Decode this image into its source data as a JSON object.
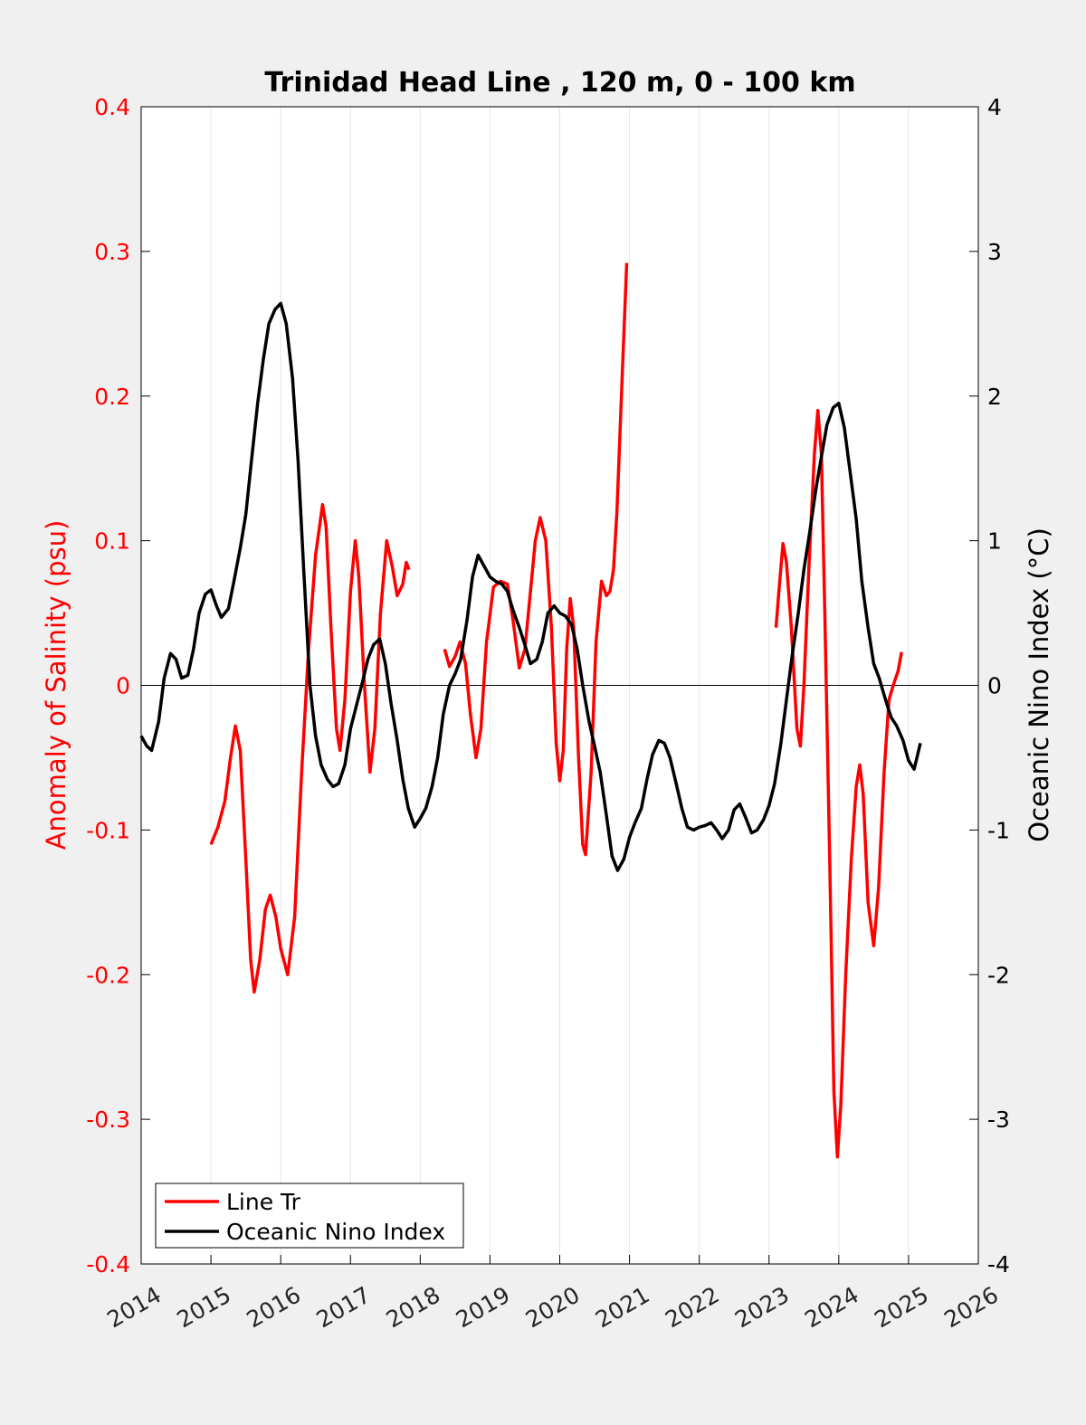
{
  "chart_data": {
    "type": "line",
    "title": "Trinidad Head Line , 120 m, 0 - 100 km",
    "xlabel": "",
    "ylabel_left": "Anomaly of Salinity (psu)",
    "ylabel_right": "Oceanic Nino Index (°C)",
    "xlim": [
      2014,
      2026
    ],
    "ylim_left": [
      -0.4,
      0.4
    ],
    "ylim_right": [
      -4,
      4
    ],
    "x_ticks": [
      "2014",
      "2015",
      "2016",
      "2017",
      "2018",
      "2019",
      "2020",
      "2021",
      "2022",
      "2023",
      "2024",
      "2025",
      "2026"
    ],
    "y_ticks_left": [
      "-0.4",
      "-0.3",
      "-0.2",
      "-0.1",
      "0",
      "0.1",
      "0.2",
      "0.3",
      "0.4"
    ],
    "y_ticks_right": [
      "-4",
      "-3",
      "-2",
      "-1",
      "0",
      "1",
      "2",
      "3",
      "4"
    ],
    "grid": "vertical",
    "zero_line": true,
    "legend_position": "bottom-left",
    "colors": {
      "salinity": "#ff0000",
      "oni": "#000000",
      "plot_bg": "#ffffff",
      "figure_bg": "#f0f0f0",
      "grid": "#e6e6e6"
    },
    "series": [
      {
        "name": "Line Tr",
        "axis": "left",
        "color": "#ff0000",
        "segments": [
          [
            [
              2015.0,
              -0.11
            ],
            [
              2015.1,
              -0.098
            ],
            [
              2015.2,
              -0.08
            ],
            [
              2015.28,
              -0.05
            ],
            [
              2015.35,
              -0.028
            ],
            [
              2015.42,
              -0.045
            ],
            [
              2015.5,
              -0.12
            ],
            [
              2015.57,
              -0.19
            ],
            [
              2015.62,
              -0.212
            ],
            [
              2015.7,
              -0.19
            ],
            [
              2015.78,
              -0.155
            ],
            [
              2015.85,
              -0.145
            ],
            [
              2015.93,
              -0.16
            ],
            [
              2016.0,
              -0.182
            ],
            [
              2016.1,
              -0.2
            ],
            [
              2016.2,
              -0.16
            ],
            [
              2016.3,
              -0.06
            ],
            [
              2016.4,
              0.025
            ],
            [
              2016.5,
              0.09
            ],
            [
              2016.6,
              0.125
            ],
            [
              2016.65,
              0.11
            ],
            [
              2016.72,
              0.04
            ],
            [
              2016.8,
              -0.03
            ],
            [
              2016.85,
              -0.045
            ],
            [
              2016.92,
              -0.01
            ],
            [
              2017.0,
              0.065
            ],
            [
              2017.07,
              0.1
            ],
            [
              2017.12,
              0.075
            ],
            [
              2017.2,
              0.0
            ],
            [
              2017.28,
              -0.06
            ],
            [
              2017.35,
              -0.03
            ],
            [
              2017.43,
              0.05
            ],
            [
              2017.52,
              0.1
            ],
            [
              2017.6,
              0.082
            ],
            [
              2017.67,
              0.062
            ],
            [
              2017.75,
              0.07
            ],
            [
              2017.8,
              0.085
            ],
            [
              2017.84,
              0.08
            ]
          ],
          [
            [
              2018.35,
              0.025
            ],
            [
              2018.42,
              0.013
            ],
            [
              2018.5,
              0.02
            ],
            [
              2018.57,
              0.03
            ],
            [
              2018.65,
              0.015
            ],
            [
              2018.72,
              -0.02
            ],
            [
              2018.8,
              -0.05
            ],
            [
              2018.87,
              -0.03
            ],
            [
              2018.95,
              0.03
            ],
            [
              2019.05,
              0.068
            ],
            [
              2019.15,
              0.072
            ],
            [
              2019.25,
              0.07
            ],
            [
              2019.33,
              0.045
            ],
            [
              2019.42,
              0.012
            ],
            [
              2019.5,
              0.025
            ],
            [
              2019.57,
              0.06
            ],
            [
              2019.65,
              0.1
            ],
            [
              2019.72,
              0.116
            ],
            [
              2019.8,
              0.1
            ],
            [
              2019.88,
              0.04
            ],
            [
              2019.95,
              -0.04
            ],
            [
              2020.0,
              -0.066
            ],
            [
              2020.05,
              -0.045
            ],
            [
              2020.1,
              0.025
            ],
            [
              2020.15,
              0.06
            ],
            [
              2020.2,
              0.04
            ],
            [
              2020.27,
              -0.05
            ],
            [
              2020.33,
              -0.11
            ],
            [
              2020.37,
              -0.117
            ],
            [
              2020.45,
              -0.06
            ],
            [
              2020.52,
              0.03
            ],
            [
              2020.6,
              0.072
            ],
            [
              2020.67,
              0.062
            ],
            [
              2020.72,
              0.065
            ],
            [
              2020.77,
              0.08
            ],
            [
              2020.82,
              0.12
            ],
            [
              2020.9,
              0.22
            ],
            [
              2020.96,
              0.292
            ]
          ],
          [
            [
              2023.1,
              0.04
            ],
            [
              2023.15,
              0.07
            ],
            [
              2023.2,
              0.098
            ],
            [
              2023.25,
              0.085
            ],
            [
              2023.32,
              0.04
            ],
            [
              2023.4,
              -0.03
            ],
            [
              2023.45,
              -0.042
            ],
            [
              2023.5,
              0.0
            ],
            [
              2023.57,
              0.08
            ],
            [
              2023.65,
              0.16
            ],
            [
              2023.7,
              0.19
            ],
            [
              2023.75,
              0.16
            ],
            [
              2023.8,
              0.05
            ],
            [
              2023.87,
              -0.12
            ],
            [
              2023.93,
              -0.28
            ],
            [
              2023.98,
              -0.326
            ],
            [
              2024.03,
              -0.29
            ],
            [
              2024.1,
              -0.2
            ],
            [
              2024.18,
              -0.12
            ],
            [
              2024.25,
              -0.07
            ],
            [
              2024.3,
              -0.055
            ],
            [
              2024.35,
              -0.075
            ],
            [
              2024.42,
              -0.15
            ],
            [
              2024.5,
              -0.18
            ],
            [
              2024.57,
              -0.14
            ],
            [
              2024.65,
              -0.06
            ],
            [
              2024.72,
              -0.01
            ],
            [
              2024.78,
              0.0
            ],
            [
              2024.85,
              0.01
            ],
            [
              2024.9,
              0.023
            ]
          ]
        ]
      },
      {
        "name": "Oceanic Nino Index",
        "axis": "right",
        "color": "#000000",
        "segments": [
          [
            [
              2014.0,
              -0.35
            ],
            [
              2014.08,
              -0.42
            ],
            [
              2014.15,
              -0.45
            ],
            [
              2014.25,
              -0.25
            ],
            [
              2014.33,
              0.05
            ],
            [
              2014.42,
              0.22
            ],
            [
              2014.5,
              0.18
            ],
            [
              2014.58,
              0.05
            ],
            [
              2014.67,
              0.07
            ],
            [
              2014.75,
              0.25
            ],
            [
              2014.83,
              0.5
            ],
            [
              2014.92,
              0.63
            ],
            [
              2015.0,
              0.66
            ],
            [
              2015.08,
              0.55
            ],
            [
              2015.15,
              0.47
            ],
            [
              2015.25,
              0.53
            ],
            [
              2015.33,
              0.72
            ],
            [
              2015.42,
              0.95
            ],
            [
              2015.5,
              1.18
            ],
            [
              2015.58,
              1.55
            ],
            [
              2015.67,
              1.95
            ],
            [
              2015.75,
              2.25
            ],
            [
              2015.83,
              2.5
            ],
            [
              2015.92,
              2.6
            ],
            [
              2016.0,
              2.64
            ],
            [
              2016.08,
              2.5
            ],
            [
              2016.17,
              2.12
            ],
            [
              2016.25,
              1.55
            ],
            [
              2016.33,
              0.8
            ],
            [
              2016.42,
              0.0
            ],
            [
              2016.5,
              -0.35
            ],
            [
              2016.58,
              -0.55
            ],
            [
              2016.67,
              -0.65
            ],
            [
              2016.75,
              -0.7
            ],
            [
              2016.83,
              -0.68
            ],
            [
              2016.92,
              -0.55
            ],
            [
              2017.0,
              -0.3
            ],
            [
              2017.08,
              -0.15
            ],
            [
              2017.17,
              0.02
            ],
            [
              2017.25,
              0.18
            ],
            [
              2017.33,
              0.28
            ],
            [
              2017.42,
              0.32
            ],
            [
              2017.5,
              0.15
            ],
            [
              2017.58,
              -0.12
            ],
            [
              2017.67,
              -0.38
            ],
            [
              2017.75,
              -0.65
            ],
            [
              2017.83,
              -0.85
            ],
            [
              2017.92,
              -0.98
            ],
            [
              2018.0,
              -0.92
            ],
            [
              2018.08,
              -0.85
            ],
            [
              2018.17,
              -0.7
            ],
            [
              2018.25,
              -0.5
            ],
            [
              2018.33,
              -0.2
            ],
            [
              2018.42,
              0.0
            ],
            [
              2018.5,
              0.08
            ],
            [
              2018.58,
              0.18
            ],
            [
              2018.67,
              0.45
            ],
            [
              2018.75,
              0.75
            ],
            [
              2018.83,
              0.9
            ],
            [
              2018.92,
              0.82
            ],
            [
              2019.0,
              0.75
            ],
            [
              2019.08,
              0.72
            ],
            [
              2019.17,
              0.7
            ],
            [
              2019.25,
              0.65
            ],
            [
              2019.33,
              0.52
            ],
            [
              2019.42,
              0.4
            ],
            [
              2019.5,
              0.28
            ],
            [
              2019.58,
              0.15
            ],
            [
              2019.67,
              0.18
            ],
            [
              2019.75,
              0.3
            ],
            [
              2019.83,
              0.5
            ],
            [
              2019.92,
              0.55
            ],
            [
              2020.0,
              0.5
            ],
            [
              2020.08,
              0.48
            ],
            [
              2020.17,
              0.42
            ],
            [
              2020.25,
              0.25
            ],
            [
              2020.33,
              0.0
            ],
            [
              2020.42,
              -0.25
            ],
            [
              2020.5,
              -0.42
            ],
            [
              2020.58,
              -0.6
            ],
            [
              2020.67,
              -0.9
            ],
            [
              2020.75,
              -1.18
            ],
            [
              2020.83,
              -1.28
            ],
            [
              2020.92,
              -1.2
            ],
            [
              2021.0,
              -1.05
            ],
            [
              2021.08,
              -0.95
            ],
            [
              2021.17,
              -0.85
            ],
            [
              2021.25,
              -0.65
            ],
            [
              2021.33,
              -0.48
            ],
            [
              2021.42,
              -0.38
            ],
            [
              2021.5,
              -0.4
            ],
            [
              2021.58,
              -0.5
            ],
            [
              2021.67,
              -0.68
            ],
            [
              2021.75,
              -0.85
            ],
            [
              2021.83,
              -0.98
            ],
            [
              2021.92,
              -1.0
            ],
            [
              2022.0,
              -0.98
            ],
            [
              2022.08,
              -0.97
            ],
            [
              2022.17,
              -0.95
            ],
            [
              2022.25,
              -1.0
            ],
            [
              2022.33,
              -1.06
            ],
            [
              2022.42,
              -1.0
            ],
            [
              2022.5,
              -0.86
            ],
            [
              2022.58,
              -0.82
            ],
            [
              2022.67,
              -0.92
            ],
            [
              2022.75,
              -1.02
            ],
            [
              2022.83,
              -1.0
            ],
            [
              2022.92,
              -0.93
            ],
            [
              2023.0,
              -0.83
            ],
            [
              2023.08,
              -0.68
            ],
            [
              2023.17,
              -0.4
            ],
            [
              2023.25,
              -0.1
            ],
            [
              2023.33,
              0.2
            ],
            [
              2023.42,
              0.5
            ],
            [
              2023.5,
              0.8
            ],
            [
              2023.58,
              1.05
            ],
            [
              2023.67,
              1.35
            ],
            [
              2023.75,
              1.58
            ],
            [
              2023.83,
              1.8
            ],
            [
              2023.92,
              1.92
            ],
            [
              2024.0,
              1.95
            ],
            [
              2024.08,
              1.78
            ],
            [
              2024.17,
              1.45
            ],
            [
              2024.25,
              1.15
            ],
            [
              2024.33,
              0.72
            ],
            [
              2024.42,
              0.4
            ],
            [
              2024.5,
              0.15
            ],
            [
              2024.58,
              0.05
            ],
            [
              2024.67,
              -0.1
            ],
            [
              2024.75,
              -0.22
            ],
            [
              2024.83,
              -0.28
            ],
            [
              2024.92,
              -0.38
            ],
            [
              2025.0,
              -0.52
            ],
            [
              2025.08,
              -0.58
            ],
            [
              2025.17,
              -0.4
            ]
          ]
        ]
      }
    ]
  }
}
